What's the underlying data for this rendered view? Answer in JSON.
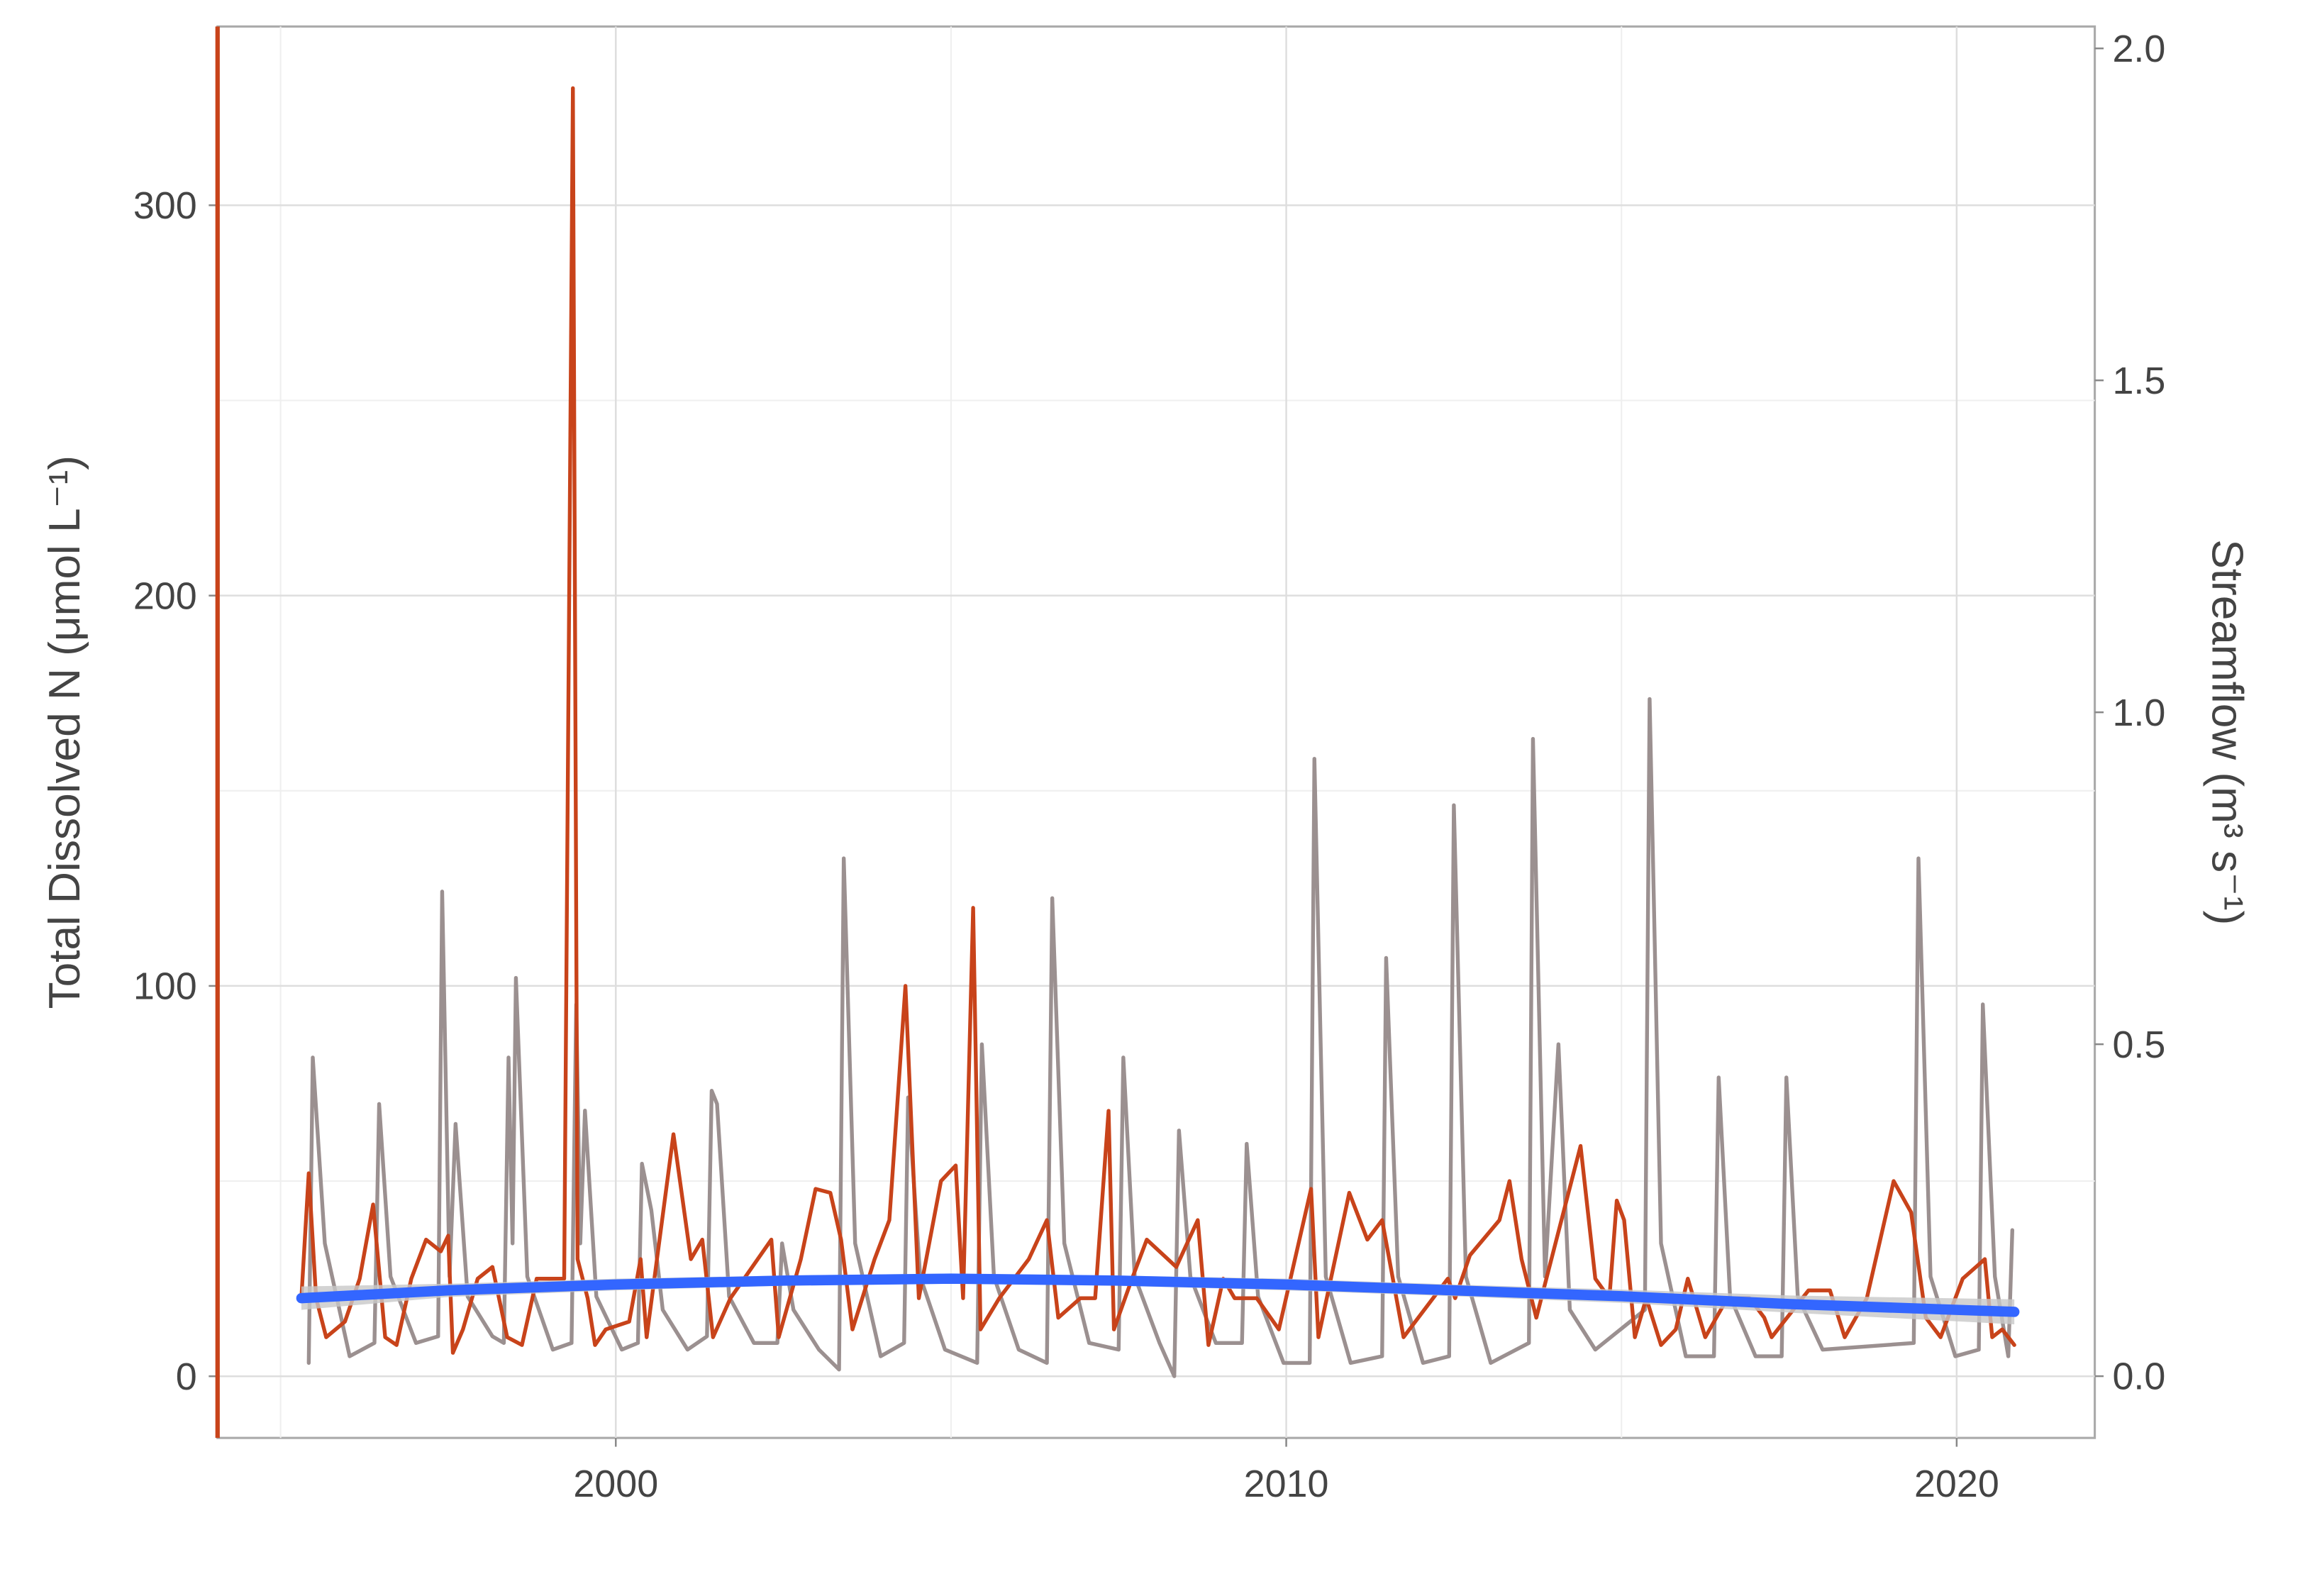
{
  "chart_data": {
    "type": "line",
    "y_label": "Total Dissolved N (μmol L⁻¹)",
    "y2_label": "Streamflow (m³ s⁻¹)",
    "xlim": [
      1994.06,
      2022.06
    ],
    "xticks": [
      2000,
      2010,
      2020
    ],
    "ylim": [
      -15.8,
      345.8
    ],
    "yticks": [
      0,
      100,
      200,
      300
    ],
    "y2lim": [
      -0.093,
      2.033
    ],
    "y2ticks": [
      {
        "value": 0,
        "label": "0.0"
      },
      {
        "value": 0.5,
        "label": "0.5"
      },
      {
        "value": 1,
        "label": "1.0"
      },
      {
        "value": 1.5,
        "label": "1.5"
      },
      {
        "value": 2,
        "label": "2.0"
      }
    ],
    "grid": true,
    "y_color": "#c8431a",
    "y2_color": "#9b9090",
    "series": [
      {
        "color": "#9b9090",
        "axis": "y2",
        "x": [
          1995.42,
          1995.48,
          1995.66,
          1996.03,
          1996.4,
          1996.47,
          1996.64,
          1997.02,
          1997.35,
          1997.41,
          1997.52,
          1997.61,
          1997.79,
          1998.16,
          1998.33,
          1998.4,
          1998.46,
          1998.51,
          1998.68,
          1999.06,
          1999.34,
          1999.41,
          1999.47,
          1999.54,
          1999.71,
          2000.09,
          2000.33,
          2000.39,
          2000.53,
          2000.7,
          2001.07,
          2001.36,
          2001.43,
          2001.51,
          2001.69,
          2002.06,
          2002.41,
          2002.48,
          2002.65,
          2003.03,
          2003.33,
          2003.4,
          2003.57,
          2003.95,
          2004.3,
          2004.36,
          2004.54,
          2004.91,
          2005.39,
          2005.46,
          2005.64,
          2006.01,
          2006.43,
          2006.51,
          2006.69,
          2007.06,
          2007.5,
          2007.57,
          2007.74,
          2008.11,
          2008.33,
          2008.4,
          2008.57,
          2008.95,
          2009.34,
          2009.41,
          2009.58,
          2009.96,
          2010.35,
          2010.42,
          2010.59,
          2010.96,
          2011.43,
          2011.49,
          2011.67,
          2012.04,
          2012.43,
          2012.5,
          2012.68,
          2013.05,
          2013.62,
          2013.68,
          2013.86,
          2014.06,
          2014.23,
          2014.61,
          2015.35,
          2015.42,
          2015.59,
          2015.96,
          2016.38,
          2016.45,
          2016.62,
          2017.0,
          2017.39,
          2017.46,
          2017.63,
          2018.0,
          2019.36,
          2019.43,
          2019.61,
          2019.98,
          2020.33,
          2020.39,
          2020.57,
          2020.77,
          2020.83
        ],
        "values": [
          0.02,
          0.48,
          0.2,
          0.03,
          0.05,
          0.41,
          0.15,
          0.05,
          0.06,
          0.73,
          0.15,
          0.38,
          0.12,
          0.06,
          0.05,
          0.48,
          0.2,
          0.6,
          0.15,
          0.04,
          0.05,
          0.56,
          0.2,
          0.4,
          0.12,
          0.04,
          0.05,
          0.32,
          0.25,
          0.1,
          0.04,
          0.06,
          0.43,
          0.41,
          0.12,
          0.05,
          0.05,
          0.2,
          0.1,
          0.04,
          0.01,
          0.78,
          0.2,
          0.03,
          0.05,
          0.42,
          0.15,
          0.04,
          0.02,
          0.5,
          0.15,
          0.04,
          0.02,
          0.72,
          0.2,
          0.05,
          0.04,
          0.48,
          0.15,
          0.05,
          0.0,
          0.37,
          0.15,
          0.05,
          0.05,
          0.35,
          0.12,
          0.02,
          0.02,
          0.93,
          0.15,
          0.02,
          0.03,
          0.63,
          0.15,
          0.02,
          0.03,
          0.86,
          0.15,
          0.02,
          0.05,
          0.96,
          0.15,
          0.5,
          0.1,
          0.04,
          0.1,
          1.02,
          0.2,
          0.03,
          0.03,
          0.45,
          0.12,
          0.03,
          0.03,
          0.45,
          0.12,
          0.04,
          0.05,
          0.78,
          0.15,
          0.03,
          0.04,
          0.56,
          0.15,
          0.03,
          0.22
        ]
      },
      {
        "color": "#c8431a",
        "x": [
          1995.31,
          1995.42,
          1995.53,
          1995.68,
          1995.96,
          1996.18,
          1996.38,
          1996.56,
          1996.73,
          1996.95,
          1997.17,
          1997.39,
          1997.5,
          1997.57,
          1997.72,
          1997.94,
          1998.16,
          1998.38,
          1998.6,
          1998.82,
          1999.23,
          1999.36,
          1999.43,
          1999.58,
          1999.69,
          1999.85,
          2000.2,
          2000.37,
          2000.46,
          2000.86,
          2001.12,
          2001.29,
          2001.45,
          2001.71,
          2002.32,
          2002.43,
          2002.76,
          2002.98,
          2003.2,
          2003.36,
          2003.53,
          2003.86,
          2004.08,
          2004.32,
          2004.52,
          2004.85,
          2005.07,
          2005.18,
          2005.33,
          2005.44,
          2005.72,
          2006.16,
          2006.43,
          2006.6,
          2006.93,
          2007.15,
          2007.35,
          2007.43,
          2007.7,
          2007.92,
          2008.36,
          2008.68,
          2008.84,
          2009.06,
          2009.23,
          2009.56,
          2009.89,
          2010.37,
          2010.48,
          2010.94,
          2011.21,
          2011.43,
          2011.75,
          2012.19,
          2012.41,
          2012.52,
          2012.74,
          2013.18,
          2013.33,
          2013.51,
          2013.73,
          2014.39,
          2014.61,
          2014.82,
          2014.93,
          2015.04,
          2015.2,
          2015.37,
          2015.59,
          2015.81,
          2015.99,
          2016.25,
          2016.58,
          2016.91,
          2017.13,
          2017.24,
          2017.79,
          2018.11,
          2018.33,
          2018.66,
          2019.06,
          2019.32,
          2019.54,
          2019.76,
          2020.09,
          2020.42,
          2020.53,
          2020.68,
          2020.86
        ],
        "values": [
          20,
          52,
          20,
          10,
          14,
          25,
          44,
          10,
          8,
          25,
          35,
          32,
          36,
          6,
          12,
          25,
          28,
          10,
          8,
          25,
          25,
          330,
          30,
          20,
          8,
          12,
          14,
          30,
          10,
          62,
          30,
          35,
          10,
          20,
          35,
          10,
          30,
          48,
          47,
          35,
          12,
          30,
          40,
          100,
          20,
          50,
          54,
          20,
          120,
          12,
          20,
          30,
          40,
          15,
          20,
          20,
          68,
          12,
          25,
          35,
          28,
          40,
          8,
          25,
          20,
          20,
          12,
          48,
          10,
          47,
          35,
          40,
          10,
          20,
          25,
          20,
          31,
          40,
          50,
          30,
          15,
          59,
          25,
          20,
          45,
          40,
          10,
          20,
          8,
          12,
          25,
          10,
          20,
          20,
          15,
          10,
          22,
          22,
          10,
          20,
          50,
          42,
          15,
          10,
          25,
          30,
          10,
          12,
          8
        ]
      },
      {
        "color": "#3366ff",
        "x": [
          1995.31,
          1997.5,
          2000,
          2002.5,
          2005,
          2007.5,
          2010,
          2012.5,
          2015,
          2017.5,
          2020.86
        ],
        "values": [
          20,
          22,
          23.5,
          24.5,
          25,
          24.5,
          23.5,
          22,
          20.5,
          18.5,
          16.5
        ],
        "lower": [
          17,
          20.3,
          22,
          23.2,
          23.7,
          23.2,
          22,
          20.5,
          18.8,
          16.3,
          13.3
        ],
        "upper": [
          23,
          23.7,
          25,
          25.8,
          26.3,
          25.8,
          25,
          23.5,
          22.2,
          20.7,
          19.7
        ],
        "band_color": "#c8c8c8"
      }
    ]
  }
}
